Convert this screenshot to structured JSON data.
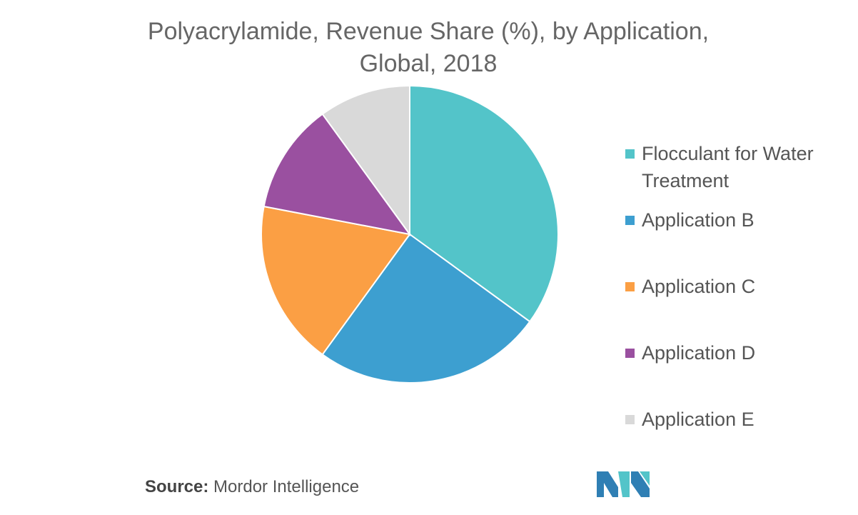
{
  "chart_data": {
    "type": "pie",
    "title": "Polyacrylamide, Revenue Share (%), by Application, Global, 2018",
    "categories": [
      "Flocculant for Water Treatment",
      "Application B",
      "Application C",
      "Application D",
      "Application E"
    ],
    "values": [
      35,
      25,
      18,
      12,
      10
    ],
    "colors": [
      "#53c4c9",
      "#3d9fd0",
      "#fb9f44",
      "#9a50a0",
      "#d9d9d9"
    ],
    "legend": "right"
  },
  "source": {
    "label": "Source:",
    "text": "Mordor Intelligence"
  }
}
